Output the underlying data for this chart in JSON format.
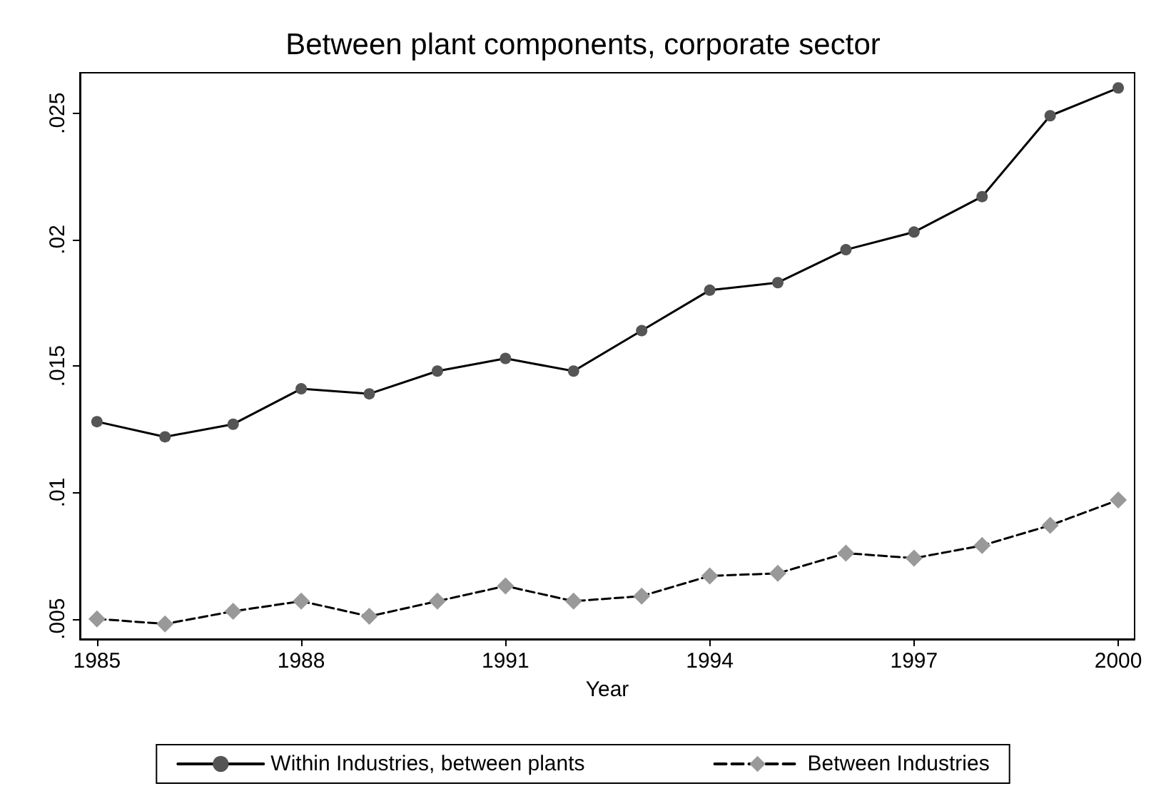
{
  "chart_data": {
    "type": "line",
    "title": "Between plant components, corporate sector",
    "xlabel": "Year",
    "x": [
      1985,
      1986,
      1987,
      1988,
      1989,
      1990,
      1991,
      1992,
      1993,
      1994,
      1995,
      1996,
      1997,
      1998,
      1999,
      2000
    ],
    "xlim": [
      1984.75,
      2000.24
    ],
    "xticks": [
      1985,
      1988,
      1991,
      1994,
      1997,
      2000
    ],
    "ylim": [
      0.0042,
      0.0266
    ],
    "yticks": [
      {
        "value": 0.005,
        "label": ".005"
      },
      {
        "value": 0.01,
        "label": ".01"
      },
      {
        "value": 0.015,
        "label": ".015"
      },
      {
        "value": 0.02,
        "label": ".02"
      },
      {
        "value": 0.025,
        "label": ".025"
      }
    ],
    "grid": false,
    "legend": "bottom",
    "series": [
      {
        "name": "Within Industries, between plants",
        "color": "#555555",
        "marker": "circle",
        "line_style": "solid",
        "values": [
          0.0128,
          0.0122,
          0.0127,
          0.0141,
          0.0139,
          0.0148,
          0.0153,
          0.0148,
          0.0164,
          0.018,
          0.0183,
          0.0196,
          0.0203,
          0.0217,
          0.0249,
          0.026
        ]
      },
      {
        "name": "Between Industries",
        "color": "#999999",
        "marker": "diamond",
        "line_style": "dashed",
        "values": [
          0.005,
          0.0048,
          0.0053,
          0.0057,
          0.0051,
          0.0057,
          0.0063,
          0.0057,
          0.0059,
          0.0067,
          0.0068,
          0.0076,
          0.0074,
          0.0079,
          0.0087,
          0.0097
        ]
      }
    ]
  }
}
